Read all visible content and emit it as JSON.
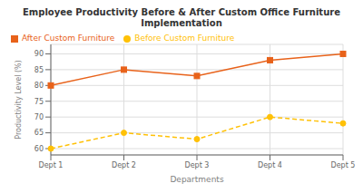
{
  "chart_data": {
    "type": "line",
    "title": "Employee Productivity Before & After Custom Office Furniture Implementation",
    "xlabel": "Departments",
    "ylabel": "Productivity Level (%)",
    "categories": [
      "Dept 1",
      "Dept 2",
      "Dept 3",
      "Dept 4",
      "Dept 5"
    ],
    "series": [
      {
        "name": "Before Custom Furniture",
        "color": "#FFC107",
        "values": [
          60,
          65,
          63,
          70,
          68
        ],
        "marker": "circle",
        "line_style": "dashed"
      },
      {
        "name": "After Custom Furniture",
        "color": "#E8621A",
        "values": [
          80,
          85,
          83,
          88,
          90
        ],
        "marker": "square",
        "line_style": "solid"
      }
    ],
    "ylim": [
      58,
      93
    ],
    "yticks": [
      60,
      65,
      70,
      75,
      80,
      85,
      90
    ],
    "grid": true,
    "legend": "upper left"
  }
}
